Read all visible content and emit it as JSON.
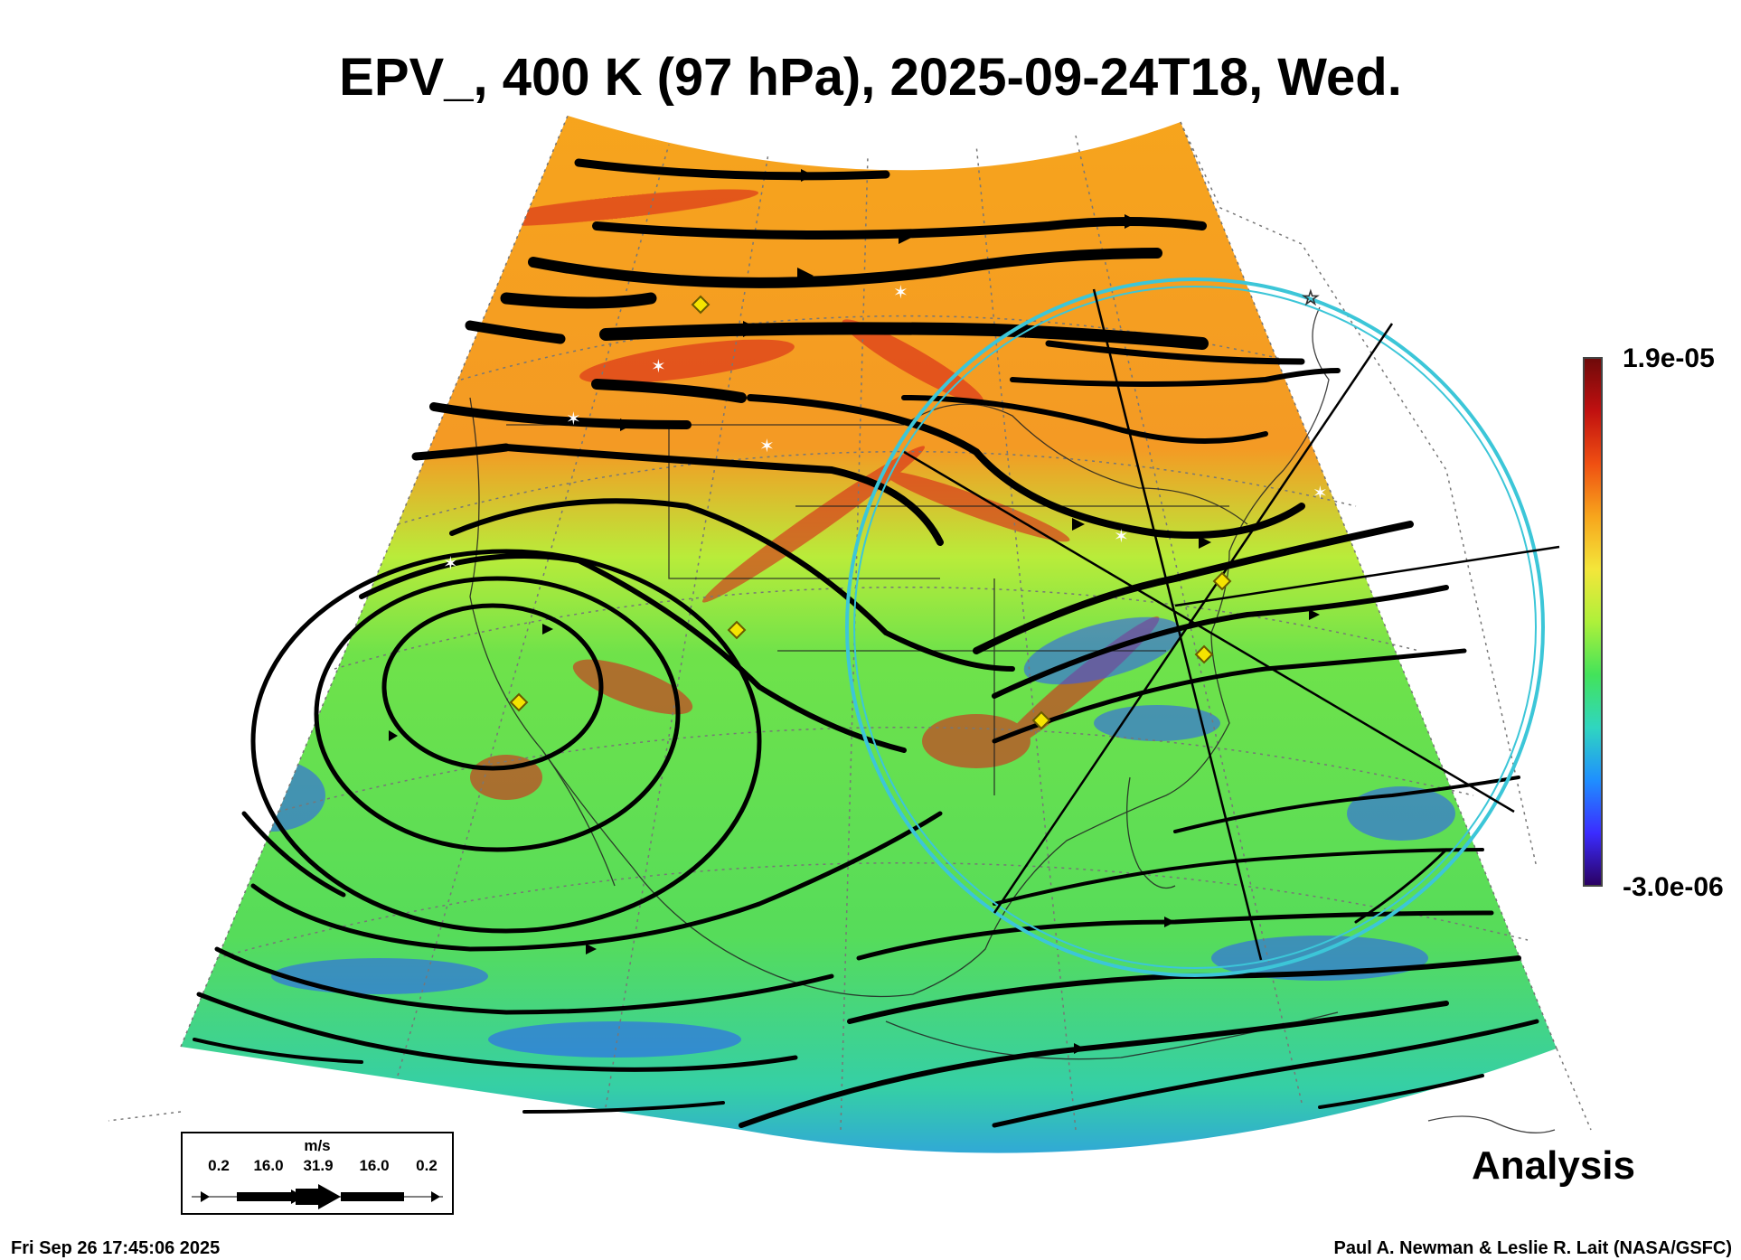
{
  "title": "EPV_, 400 K (97 hPa), 2025-09-24T18, Wed.",
  "colorbar": {
    "max_label": "1.9e-05",
    "min_label": "-3.0e-06",
    "colors": [
      "#2a0060",
      "#3b2cff",
      "#1f8fff",
      "#2fd6c0",
      "#43e35a",
      "#aef03a",
      "#f4e63a",
      "#f7a51c",
      "#ef4f12",
      "#c01010",
      "#6e0a0a"
    ]
  },
  "legend": {
    "unit": "m/s",
    "labels": [
      "0.2",
      "16.0",
      "31.9",
      "16.0",
      "0.2"
    ]
  },
  "stamp": "Analysis",
  "timestamp": "Fri Sep 26 17:45:06 2025",
  "credit": "Paul A. Newman & Leslie R. Lait (NASA/GSFC)",
  "colors": {
    "ring": "#3cc6d8",
    "marker": "#f5e400",
    "station": "#ffffff",
    "streamline": "#000000"
  }
}
